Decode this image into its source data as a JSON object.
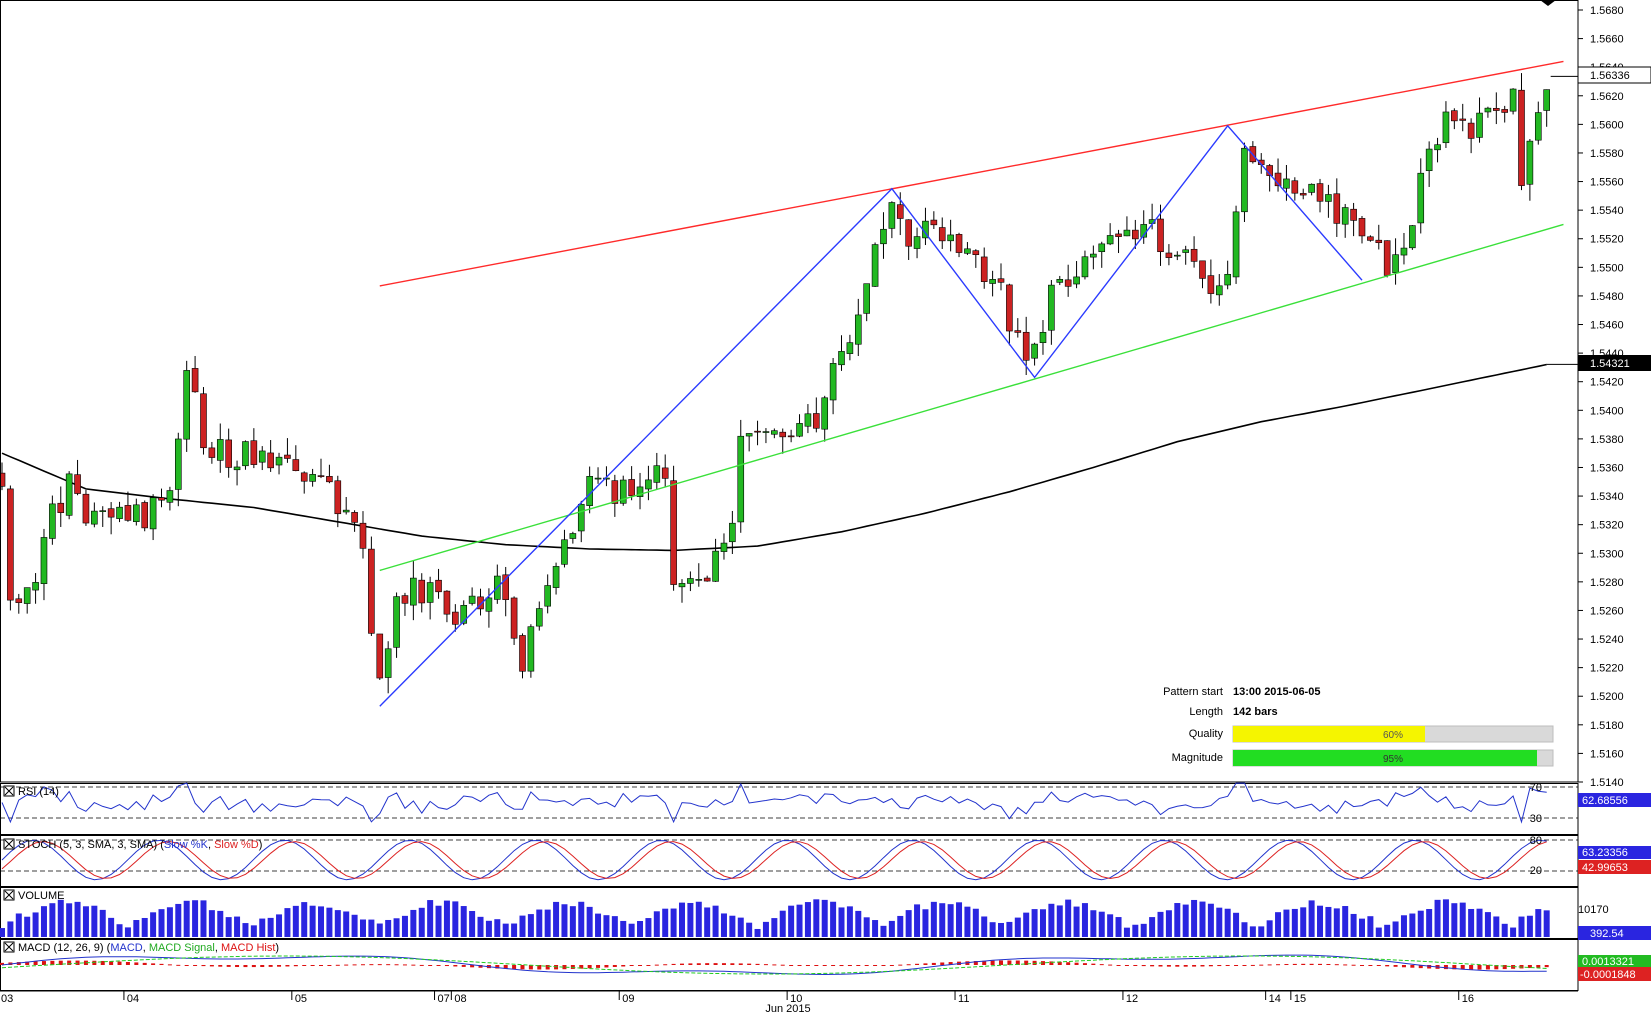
{
  "chart_data": {
    "type": "candlestick",
    "instrument_note": "",
    "price_axis": {
      "ylim": [
        1.514,
        1.568
      ],
      "ticks": [
        "1.5680",
        "1.5660",
        "1.5640",
        "1.5620",
        "1.5600",
        "1.5580",
        "1.5560",
        "1.5540",
        "1.5520",
        "1.5500",
        "1.5480",
        "1.5460",
        "1.5440",
        "1.5420",
        "1.5400",
        "1.5380",
        "1.5360",
        "1.5340",
        "1.5320",
        "1.5300",
        "1.5280",
        "1.5260",
        "1.5240",
        "1.5220",
        "1.5200",
        "1.5180",
        "1.5160",
        "1.5140"
      ],
      "current_price_label": "1.56336",
      "current_price": 1.56336,
      "ma_price_label": "1.54321",
      "ma_price": 1.54321
    },
    "time_axis": {
      "labels": [
        {
          "text": "03",
          "bar": 0
        },
        {
          "text": "04",
          "bar": 15
        },
        {
          "text": "05",
          "bar": 35
        },
        {
          "text": "07",
          "bar": 52
        },
        {
          "text": "08",
          "bar": 54
        },
        {
          "text": "09",
          "bar": 74
        },
        {
          "text": "10",
          "bar": 94
        },
        {
          "text": "11",
          "bar": 114
        },
        {
          "text": "12",
          "bar": 134
        },
        {
          "text": "14",
          "bar": 151
        },
        {
          "text": "15",
          "bar": 154
        },
        {
          "text": "16",
          "bar": 174
        }
      ],
      "month_label": "Jun 2015",
      "bar_count": 185
    },
    "anchors": [
      {
        "bar": 0,
        "price": 1.5355
      },
      {
        "bar": 1,
        "price": 1.5265
      },
      {
        "bar": 4,
        "price": 1.528
      },
      {
        "bar": 6,
        "price": 1.533
      },
      {
        "bar": 8,
        "price": 1.5345
      },
      {
        "bar": 10,
        "price": 1.532
      },
      {
        "bar": 13,
        "price": 1.5332
      },
      {
        "bar": 16,
        "price": 1.5325
      },
      {
        "bar": 20,
        "price": 1.5335
      },
      {
        "bar": 22,
        "price": 1.5435
      },
      {
        "bar": 24,
        "price": 1.538
      },
      {
        "bar": 27,
        "price": 1.5365
      },
      {
        "bar": 30,
        "price": 1.537
      },
      {
        "bar": 34,
        "price": 1.5358
      },
      {
        "bar": 38,
        "price": 1.5363
      },
      {
        "bar": 40,
        "price": 1.533
      },
      {
        "bar": 43,
        "price": 1.531
      },
      {
        "bar": 44,
        "price": 1.5235
      },
      {
        "bar": 45,
        "price": 1.5205
      },
      {
        "bar": 47,
        "price": 1.5265
      },
      {
        "bar": 50,
        "price": 1.5275
      },
      {
        "bar": 54,
        "price": 1.526
      },
      {
        "bar": 57,
        "price": 1.5265
      },
      {
        "bar": 59,
        "price": 1.529
      },
      {
        "bar": 61,
        "price": 1.5235
      },
      {
        "bar": 62,
        "price": 1.5228
      },
      {
        "bar": 64,
        "price": 1.5255
      },
      {
        "bar": 67,
        "price": 1.53
      },
      {
        "bar": 70,
        "price": 1.5345
      },
      {
        "bar": 74,
        "price": 1.5345
      },
      {
        "bar": 79,
        "price": 1.536
      },
      {
        "bar": 80,
        "price": 1.5285
      },
      {
        "bar": 84,
        "price": 1.529
      },
      {
        "bar": 87,
        "price": 1.532
      },
      {
        "bar": 88,
        "price": 1.538
      },
      {
        "bar": 91,
        "price": 1.5385
      },
      {
        "bar": 94,
        "price": 1.539
      },
      {
        "bar": 97,
        "price": 1.5385
      },
      {
        "bar": 99,
        "price": 1.543
      },
      {
        "bar": 101,
        "price": 1.5455
      },
      {
        "bar": 103,
        "price": 1.549
      },
      {
        "bar": 105,
        "price": 1.5535
      },
      {
        "bar": 107,
        "price": 1.5545
      },
      {
        "bar": 108,
        "price": 1.551
      },
      {
        "bar": 110,
        "price": 1.5535
      },
      {
        "bar": 112,
        "price": 1.552
      },
      {
        "bar": 115,
        "price": 1.5505
      },
      {
        "bar": 118,
        "price": 1.5495
      },
      {
        "bar": 121,
        "price": 1.545
      },
      {
        "bar": 123,
        "price": 1.544
      },
      {
        "bar": 126,
        "price": 1.5495
      },
      {
        "bar": 129,
        "price": 1.55
      },
      {
        "bar": 132,
        "price": 1.553
      },
      {
        "bar": 135,
        "price": 1.552
      },
      {
        "bar": 137,
        "price": 1.5525
      },
      {
        "bar": 140,
        "price": 1.551
      },
      {
        "bar": 143,
        "price": 1.549
      },
      {
        "bar": 146,
        "price": 1.5495
      },
      {
        "bar": 148,
        "price": 1.559
      },
      {
        "bar": 150,
        "price": 1.5575
      },
      {
        "bar": 153,
        "price": 1.5555
      },
      {
        "bar": 156,
        "price": 1.556
      },
      {
        "bar": 158,
        "price": 1.5545
      },
      {
        "bar": 161,
        "price": 1.5535
      },
      {
        "bar": 164,
        "price": 1.551
      },
      {
        "bar": 166,
        "price": 1.55
      },
      {
        "bar": 168,
        "price": 1.554
      },
      {
        "bar": 170,
        "price": 1.5585
      },
      {
        "bar": 172,
        "price": 1.5605
      },
      {
        "bar": 175,
        "price": 1.56
      },
      {
        "bar": 178,
        "price": 1.5615
      },
      {
        "bar": 180,
        "price": 1.562
      },
      {
        "bar": 181,
        "price": 1.5565
      },
      {
        "bar": 182,
        "price": 1.5585
      },
      {
        "bar": 184,
        "price": 1.563
      }
    ],
    "moving_average": [
      {
        "bar": 0,
        "price": 1.537
      },
      {
        "bar": 10,
        "price": 1.5345
      },
      {
        "bar": 20,
        "price": 1.5338
      },
      {
        "bar": 30,
        "price": 1.5332
      },
      {
        "bar": 40,
        "price": 1.5322
      },
      {
        "bar": 50,
        "price": 1.5312
      },
      {
        "bar": 60,
        "price": 1.5306
      },
      {
        "bar": 70,
        "price": 1.5303
      },
      {
        "bar": 80,
        "price": 1.5302
      },
      {
        "bar": 90,
        "price": 1.5305
      },
      {
        "bar": 100,
        "price": 1.5315
      },
      {
        "bar": 110,
        "price": 1.5328
      },
      {
        "bar": 120,
        "price": 1.5343
      },
      {
        "bar": 130,
        "price": 1.536
      },
      {
        "bar": 140,
        "price": 1.5378
      },
      {
        "bar": 150,
        "price": 1.5392
      },
      {
        "bar": 160,
        "price": 1.5403
      },
      {
        "bar": 170,
        "price": 1.5415
      },
      {
        "bar": 184,
        "price": 1.5432
      }
    ],
    "pattern": {
      "resistance": [
        {
          "bar": 45,
          "price": 1.5487
        },
        {
          "bar": 186,
          "price": 1.5644
        }
      ],
      "support": [
        {
          "bar": 45,
          "price": 1.5288
        },
        {
          "bar": 186,
          "price": 1.553
        }
      ],
      "zigzag": [
        {
          "bar": 45,
          "price": 1.5193
        },
        {
          "bar": 106,
          "price": 1.5555
        },
        {
          "bar": 123,
          "price": 1.5423
        },
        {
          "bar": 146,
          "price": 1.5599
        },
        {
          "bar": 162,
          "price": 1.5491
        }
      ]
    },
    "pattern_info": {
      "pattern_start_label": "Pattern start",
      "pattern_start_value": "13:00 2015-06-05",
      "length_label": "Length",
      "length_value": "142 bars",
      "quality_label": "Quality",
      "quality_value": "60%",
      "quality_fraction": 0.6,
      "magnitude_label": "Magnitude",
      "magnitude_value": "95%",
      "magnitude_fraction": 0.95
    },
    "panels": [
      {
        "id": "rsi",
        "label": "RSI (14)",
        "levels": [
          "70",
          "30"
        ],
        "value_label": "62.68556"
      },
      {
        "id": "stoch",
        "label": "STOCH (5, 3, SMA, 3, SMA)",
        "series_labels": [
          "Slow %K",
          "Slow %D"
        ],
        "levels": [
          "80",
          "20"
        ],
        "value_labels": [
          "63.23356",
          "42.99653"
        ]
      },
      {
        "id": "volume",
        "label": "VOLUME",
        "scale_label": "10170",
        "value_label": "392.54"
      },
      {
        "id": "macd",
        "label": "MACD (12, 26, 9)",
        "series_labels": [
          "MACD",
          "MACD Signal",
          "MACD Hist"
        ],
        "value_labels": [
          "0.0013321",
          "-0.0001848"
        ]
      }
    ],
    "colors": {
      "bull": "#22b822",
      "bear": "#cc2222",
      "resistance": "#ff2a2a",
      "support": "#3ae03a",
      "zigzag": "#2b3bff",
      "ma": "#000000",
      "quality_bar": "#f5f500",
      "magnitude_bar": "#22dd22",
      "rsi": "#2233cc",
      "stoch_k": "#2233cc",
      "stoch_d": "#dd2222",
      "volume": "#2a25e0",
      "macd": "#2233cc",
      "macd_signal": "#22cc22",
      "macd_hist": "#dd1111"
    }
  }
}
